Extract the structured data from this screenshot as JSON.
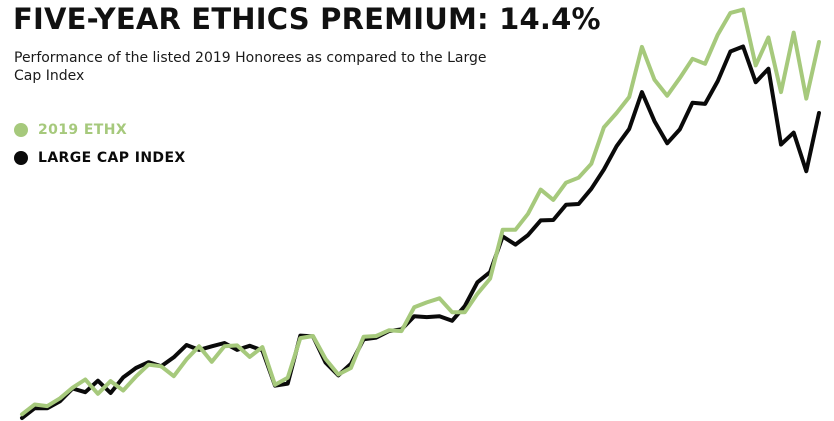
{
  "chart_data": {
    "type": "line",
    "title": "FIVE-YEAR ETHICS PREMIUM: 14.4%",
    "subtitle": "Performance of the listed 2019 Honorees as compared to the Large Cap Index",
    "xlabel": "",
    "ylabel": "",
    "grid": false,
    "axes_visible": false,
    "legend_position": "top-left",
    "x": [
      0,
      1,
      2,
      3,
      4,
      5,
      6,
      7,
      8,
      9,
      10,
      11,
      12,
      13,
      14,
      15,
      16,
      17,
      18,
      19,
      20,
      21,
      22,
      23,
      24,
      25,
      26,
      27,
      28,
      29,
      30,
      31,
      32,
      33,
      34,
      35,
      36,
      37,
      38,
      39,
      40,
      41,
      42,
      43,
      44,
      45,
      46,
      47,
      48,
      49,
      50,
      51,
      52,
      53,
      54,
      55,
      56,
      57,
      58,
      59,
      60,
      61,
      62,
      63
    ],
    "xlim": [
      0,
      63
    ],
    "ylim": [
      0,
      100
    ],
    "series": [
      {
        "name": "2019 ETHX",
        "color": "#a6c97c",
        "values": [
          0.9,
          3.3,
          2.9,
          4.8,
          7.4,
          9.4,
          5.9,
          9.0,
          6.7,
          10.1,
          13.0,
          12.6,
          10.2,
          14.3,
          17.5,
          13.7,
          17.5,
          17.7,
          14.9,
          17.3,
          8.1,
          9.8,
          19.5,
          20.0,
          14.4,
          10.6,
          12.2,
          19.8,
          20.0,
          21.4,
          21.2,
          27.0,
          28.2,
          29.2,
          25.8,
          25.8,
          30.3,
          34.0,
          45.9,
          45.9,
          49.8,
          55.7,
          53.2,
          57.4,
          58.6,
          62.0,
          70.9,
          74.4,
          78.3,
          90.5,
          82.5,
          78.6,
          82.9,
          87.6,
          86.4,
          93.5,
          98.8,
          99.6,
          86.0,
          92.8,
          79.5,
          94.0,
          77.9,
          91.7
        ]
      },
      {
        "name": "LARGE CAP INDEX",
        "color": "#0a0a0a",
        "values": [
          0.0,
          2.4,
          2.4,
          4.1,
          7.2,
          6.3,
          9.1,
          6.1,
          9.9,
          12.2,
          13.6,
          12.6,
          14.8,
          17.8,
          16.6,
          17.5,
          18.3,
          16.6,
          17.6,
          16.5,
          7.9,
          8.4,
          20.1,
          19.9,
          13.5,
          10.4,
          13.2,
          19.2,
          19.6,
          21.2,
          21.6,
          24.8,
          24.6,
          24.8,
          23.7,
          27.3,
          33.1,
          35.6,
          44.3,
          42.3,
          44.6,
          48.2,
          48.3,
          52.0,
          52.2,
          55.9,
          60.6,
          66.3,
          70.5,
          79.5,
          72.4,
          67.0,
          70.4,
          76.9,
          76.6,
          82.2,
          89.4,
          90.6,
          81.9,
          85.2,
          66.7,
          69.6,
          60.2,
          74.4
        ]
      }
    ]
  }
}
